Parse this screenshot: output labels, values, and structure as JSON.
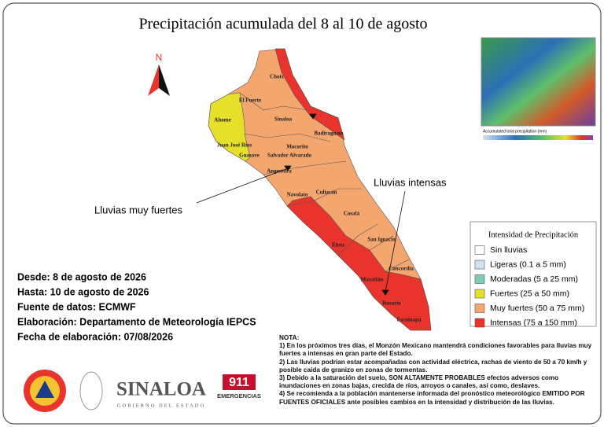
{
  "header": {
    "title": "Precipitación acumulada del 8 al 10 de agosto"
  },
  "compass": {
    "label": "N"
  },
  "map": {
    "municipalities": [
      "Choix",
      "El Fuerte",
      "Ahome",
      "Sinaloa",
      "Badiraguato",
      "Juan José Ríos",
      "Guasave",
      "Mocorito",
      "Salvador Alvarado",
      "Angostura",
      "Navolato",
      "Culiacán",
      "Cosalá",
      "Elota",
      "San Ignacio",
      "Concordia",
      "Mazatlán",
      "Rosario",
      "Escuinapa"
    ],
    "annotations": [
      "Lluvias muy fuertes",
      "Lluvias intensas"
    ]
  },
  "inset": {
    "caption": "Accumulated total precipitation (mm)"
  },
  "legend": {
    "title": "Intensidad de Precipitación",
    "items": [
      {
        "label": "Sin lluvias",
        "color": "#ffffff"
      },
      {
        "label": "Ligeras (0.1 a 5 mm)",
        "color": "#cfe3f3"
      },
      {
        "label": "Moderadas (5 a 25 mm)",
        "color": "#7fcdb8"
      },
      {
        "label": "Fuertes (25 a 50 mm)",
        "color": "#e6e02a"
      },
      {
        "label": "Muy fuertes (50 a 75 mm)",
        "color": "#f4a66f"
      },
      {
        "label": "Intensas (75 a 150 mm)",
        "color": "#e8342c"
      }
    ]
  },
  "info": [
    "Desde: 8 de agosto de 2026",
    "Hasta: 10 de agosto de 2026",
    "Fuente de datos: ECMWF",
    "Elaboración: Departamento de Meteorología IEPCS",
    "Fecha de elaboración: 07/08/2026"
  ],
  "note": {
    "title": "NOTA:",
    "paragraphs": [
      "1) En los próximos tres días, el Monzón Mexicano mantendrá condiciones favorables para lluvias muy fuertes a intensas en gran parte del Estado.",
      "2) Las lluvias podrían estar acompañadas con actividad eléctrica, rachas  de viento de 50 a 70 km/h y posible caída de granizo en zonas de tormentas.",
      "3) Debido a la saturación del suelo, SON ALTAMENTE PROBABLES efectos adversos como inundaciones en zonas bajas, crecida de ríos, arroyos o canales, así como, deslaves.",
      "4) Se recomienda a la población mantenerse informada del pronóstico meteorológico EMITIDO POR FUENTES OFICIALES ante posibles cambios en la intensidad y distribución de las lluvias."
    ]
  },
  "logos": {
    "state": "SINALOA",
    "government": "GOBIERNO DEL ESTADO",
    "emergency_number": "911",
    "emergency_label": "EMERGENCIAS"
  }
}
